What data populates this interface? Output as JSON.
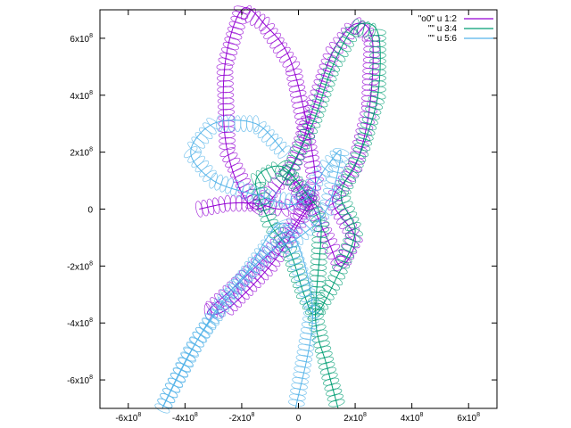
{
  "chart_data": {
    "type": "line",
    "title": "",
    "xlabel": "",
    "ylabel": "",
    "xlim": [
      -700000000,
      700000000
    ],
    "ylim": [
      -700000000,
      700000000
    ],
    "grid": false,
    "legend_position": "top-right",
    "x_ticks": [
      {
        "value": -600000000,
        "label": "-6x10",
        "exp": "8"
      },
      {
        "value": -400000000,
        "label": "-4x10",
        "exp": "8"
      },
      {
        "value": -200000000,
        "label": "-2x10",
        "exp": "8"
      },
      {
        "value": 0,
        "label": "0",
        "exp": ""
      },
      {
        "value": 200000000,
        "label": "2x10",
        "exp": "8"
      },
      {
        "value": 400000000,
        "label": "4x10",
        "exp": "8"
      },
      {
        "value": 600000000,
        "label": "6x10",
        "exp": "8"
      }
    ],
    "y_ticks": [
      {
        "value": 600000000,
        "label": "6x10",
        "exp": "8"
      },
      {
        "value": 400000000,
        "label": "4x10",
        "exp": "8"
      },
      {
        "value": 200000000,
        "label": "2x10",
        "exp": "8"
      },
      {
        "value": 0,
        "label": "0",
        "exp": ""
      },
      {
        "value": -200000000,
        "label": "-2x10",
        "exp": "8"
      },
      {
        "value": -400000000,
        "label": "-4x10",
        "exp": "8"
      },
      {
        "value": -600000000,
        "label": "-6x10",
        "exp": "8"
      }
    ],
    "series": [
      {
        "name": "\"o0\" u 1:2",
        "color": "#9400d3",
        "points": [
          [
            -350000000,
            0
          ],
          [
            -250000000,
            20000000
          ],
          [
            -150000000,
            20000000
          ],
          [
            -50000000,
            0
          ],
          [
            50000000,
            50000000
          ],
          [
            -50000000,
            -100000000
          ],
          [
            -200000000,
            -250000000
          ],
          [
            -320000000,
            -360000000
          ],
          [
            -250000000,
            -350000000
          ],
          [
            -100000000,
            -200000000
          ],
          [
            0,
            -50000000
          ],
          [
            60000000,
            100000000
          ],
          [
            -20000000,
            500000000
          ],
          [
            -120000000,
            650000000
          ],
          [
            -200000000,
            700000000
          ],
          [
            -260000000,
            500000000
          ],
          [
            -250000000,
            200000000
          ],
          [
            -150000000,
            0
          ],
          [
            -20000000,
            150000000
          ],
          [
            50000000,
            350000000
          ],
          [
            120000000,
            550000000
          ],
          [
            200000000,
            650000000
          ],
          [
            260000000,
            600000000
          ],
          [
            250000000,
            350000000
          ],
          [
            200000000,
            150000000
          ],
          [
            120000000,
            30000000
          ],
          [
            200000000,
            -100000000
          ],
          [
            150000000,
            -200000000
          ],
          [
            100000000,
            -100000000
          ],
          [
            30000000,
            50000000
          ],
          [
            -20000000,
            100000000
          ],
          [
            40000000,
            0
          ]
        ]
      },
      {
        "name": "\"\" u 3:4",
        "color": "#009e73",
        "points": [
          [
            -50000000,
            100000000
          ],
          [
            50000000,
            300000000
          ],
          [
            120000000,
            500000000
          ],
          [
            200000000,
            640000000
          ],
          [
            280000000,
            620000000
          ],
          [
            280000000,
            400000000
          ],
          [
            220000000,
            200000000
          ],
          [
            150000000,
            50000000
          ],
          [
            200000000,
            -80000000
          ],
          [
            130000000,
            -250000000
          ],
          [
            60000000,
            -370000000
          ],
          [
            20000000,
            -300000000
          ],
          [
            -30000000,
            -150000000
          ],
          [
            -100000000,
            -50000000
          ],
          [
            -150000000,
            100000000
          ],
          [
            -60000000,
            150000000
          ],
          [
            30000000,
            50000000
          ],
          [
            80000000,
            -50000000
          ],
          [
            60000000,
            -380000000
          ],
          [
            100000000,
            -550000000
          ],
          [
            140000000,
            -700000000
          ]
        ]
      },
      {
        "name": "\"\" u 5:6",
        "color": "#56b4e9",
        "points": [
          [
            -50000000,
            200000000
          ],
          [
            -150000000,
            300000000
          ],
          [
            -300000000,
            300000000
          ],
          [
            -380000000,
            200000000
          ],
          [
            -300000000,
            100000000
          ],
          [
            -150000000,
            50000000
          ],
          [
            0,
            20000000
          ],
          [
            100000000,
            150000000
          ],
          [
            150000000,
            200000000
          ],
          [
            100000000,
            0
          ],
          [
            0,
            -100000000
          ],
          [
            -100000000,
            -150000000
          ],
          [
            -250000000,
            -300000000
          ],
          [
            -380000000,
            -500000000
          ],
          [
            -480000000,
            -700000000
          ],
          [
            -350000000,
            -450000000
          ],
          [
            -200000000,
            -250000000
          ],
          [
            -50000000,
            -50000000
          ],
          [
            50000000,
            -350000000
          ],
          [
            -10000000,
            -700000000
          ]
        ]
      }
    ]
  }
}
